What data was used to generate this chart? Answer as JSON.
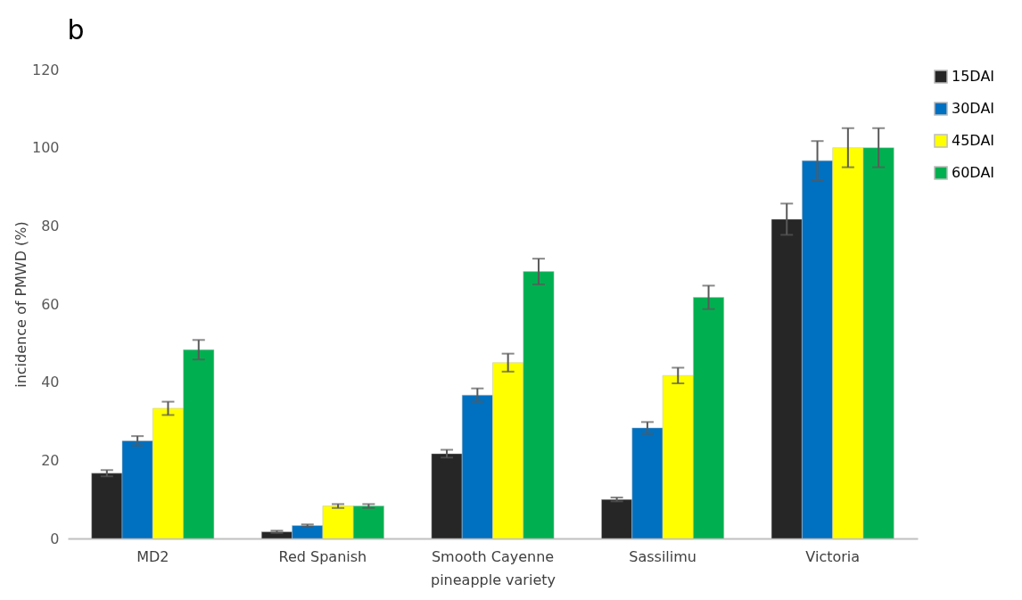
{
  "chart_data": {
    "type": "bar",
    "title": "b",
    "xlabel": "pineapple variety",
    "ylabel": "incidence of PMWD (%)",
    "categories": [
      "MD2",
      "Red Spanish",
      "Smooth Cayenne",
      "Sassilimu",
      "Victoria"
    ],
    "series": [
      {
        "name": "15DAI",
        "color": "#262626",
        "values": [
          16.7,
          1.7,
          21.7,
          10,
          81.7
        ],
        "errors": [
          0.8,
          0.3,
          1,
          0.5,
          4
        ]
      },
      {
        "name": "30DAI",
        "color": "#0070c0",
        "values": [
          25,
          3.3,
          36.7,
          28.3,
          96.7
        ],
        "errors": [
          1.2,
          0.3,
          1.7,
          1.5,
          5
        ]
      },
      {
        "name": "45DAI",
        "color": "#ffff00",
        "values": [
          33.3,
          8.3,
          45,
          41.7,
          100
        ],
        "errors": [
          1.7,
          0.5,
          2.3,
          2,
          5
        ]
      },
      {
        "name": "60DAI",
        "color": "#00b050",
        "values": [
          48.3,
          8.3,
          68.3,
          61.7,
          100
        ],
        "errors": [
          2.5,
          0.5,
          3.3,
          3,
          5
        ]
      }
    ],
    "ylim": [
      0,
      120
    ],
    "yticks": [
      0,
      20,
      40,
      60,
      80,
      100,
      120
    ],
    "grid": false,
    "legend": "right"
  }
}
